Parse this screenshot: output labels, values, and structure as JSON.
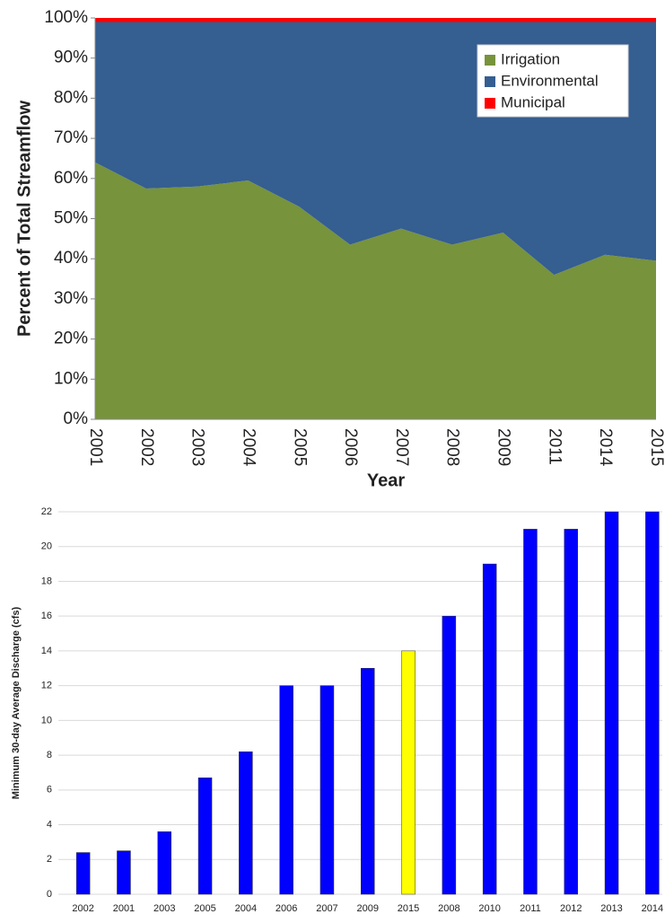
{
  "chart_data": [
    {
      "type": "stacked_area",
      "xlabel": "Year",
      "ylabel": "Percent of Total Streamflow",
      "categories": [
        "2001",
        "2002",
        "2003",
        "2004",
        "2005",
        "2006",
        "2007",
        "2008",
        "2009",
        "2011",
        "2014",
        "2015"
      ],
      "series": [
        {
          "name": "Irrigation",
          "color": "#77933c",
          "values": [
            64,
            57.5,
            58,
            59.5,
            53,
            43.5,
            47.5,
            43.5,
            46.5,
            36,
            41,
            39.5
          ]
        },
        {
          "name": "Environmental",
          "color": "#355e91",
          "values": [
            35,
            41.5,
            41,
            39.5,
            46,
            55.5,
            51.5,
            55.5,
            52.5,
            63,
            58,
            59.5
          ]
        },
        {
          "name": "Municipal",
          "color": "#ff0000",
          "values": [
            1,
            1,
            1,
            1,
            1,
            1,
            1,
            1,
            1,
            1,
            1,
            1
          ]
        }
      ],
      "ylim": [
        0,
        100
      ],
      "yticks": [
        {
          "value": 0,
          "label": "0%"
        },
        {
          "value": 10,
          "label": "10%"
        },
        {
          "value": 20,
          "label": "20%"
        },
        {
          "value": 30,
          "label": "30%"
        },
        {
          "value": 40,
          "label": "40%"
        },
        {
          "value": 50,
          "label": "50%"
        },
        {
          "value": 60,
          "label": "60%"
        },
        {
          "value": 70,
          "label": "70%"
        },
        {
          "value": 80,
          "label": "80%"
        },
        {
          "value": 90,
          "label": "90%"
        },
        {
          "value": 100,
          "label": "100%"
        }
      ],
      "legend": "upper right"
    },
    {
      "type": "bar",
      "ylabel": "Minimum 30-day Average Discharge (cfs)",
      "categories": [
        "2002",
        "2001",
        "2003",
        "2005",
        "2004",
        "2006",
        "2007",
        "2009",
        "2015",
        "2008",
        "2010",
        "2011",
        "2012",
        "2013",
        "2014"
      ],
      "values": [
        2.4,
        2.5,
        3.6,
        6.7,
        8.2,
        12,
        12,
        13,
        14,
        16,
        19,
        21,
        21,
        22,
        22
      ],
      "colors": [
        "#0000ff",
        "#0000ff",
        "#0000ff",
        "#0000ff",
        "#0000ff",
        "#0000ff",
        "#0000ff",
        "#0000ff",
        "#ffff00",
        "#0000ff",
        "#0000ff",
        "#0000ff",
        "#0000ff",
        "#0000ff",
        "#0000ff"
      ],
      "ylim": [
        0,
        22
      ],
      "yticks": [
        0,
        2,
        4,
        6,
        8,
        10,
        12,
        14,
        16,
        18,
        20,
        22
      ],
      "grid": true
    }
  ]
}
